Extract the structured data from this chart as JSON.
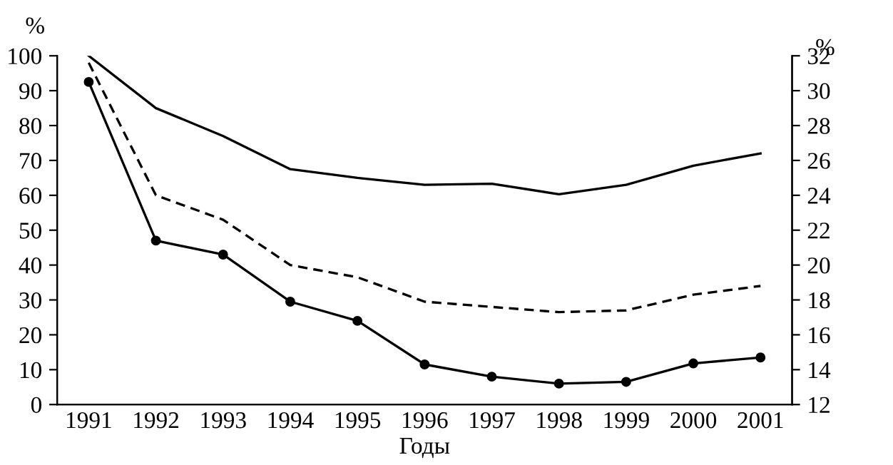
{
  "chart_data": {
    "type": "line",
    "xlabel": "Годы",
    "ylabel": "%",
    "y2label": "%",
    "categories": [
      "1991",
      "1992",
      "1993",
      "1994",
      "1995",
      "1996",
      "1997",
      "1998",
      "1999",
      "2000",
      "2001"
    ],
    "series": [
      {
        "color": "#000000",
        "line_style": "solid",
        "marker": "none",
        "values": [
          100,
          85,
          77,
          67.5,
          65,
          63,
          63.3,
          60.3,
          63,
          68.5,
          72
        ]
      },
      {
        "color": "#000000",
        "line_style": "dashed",
        "marker": "none",
        "axis": "y2",
        "values": [
          31.6,
          24,
          22.6,
          20,
          19.3,
          17.9,
          17.6,
          17.3,
          17.4,
          18.3,
          18.8
        ]
      },
      {
        "color": "#000000",
        "line_style": "solid",
        "marker": "circle",
        "values": [
          92.5,
          47,
          43,
          29.5,
          24,
          11.5,
          8,
          6,
          6.5,
          11.8,
          13.5
        ]
      }
    ],
    "ylim": [
      0,
      100
    ],
    "yticks": [
      0,
      10,
      20,
      30,
      40,
      50,
      60,
      70,
      80,
      90,
      100
    ],
    "y2lim": [
      12,
      32
    ],
    "y2ticks": [
      12,
      14,
      16,
      18,
      20,
      22,
      24,
      26,
      28,
      30,
      32
    ],
    "grid": false
  }
}
